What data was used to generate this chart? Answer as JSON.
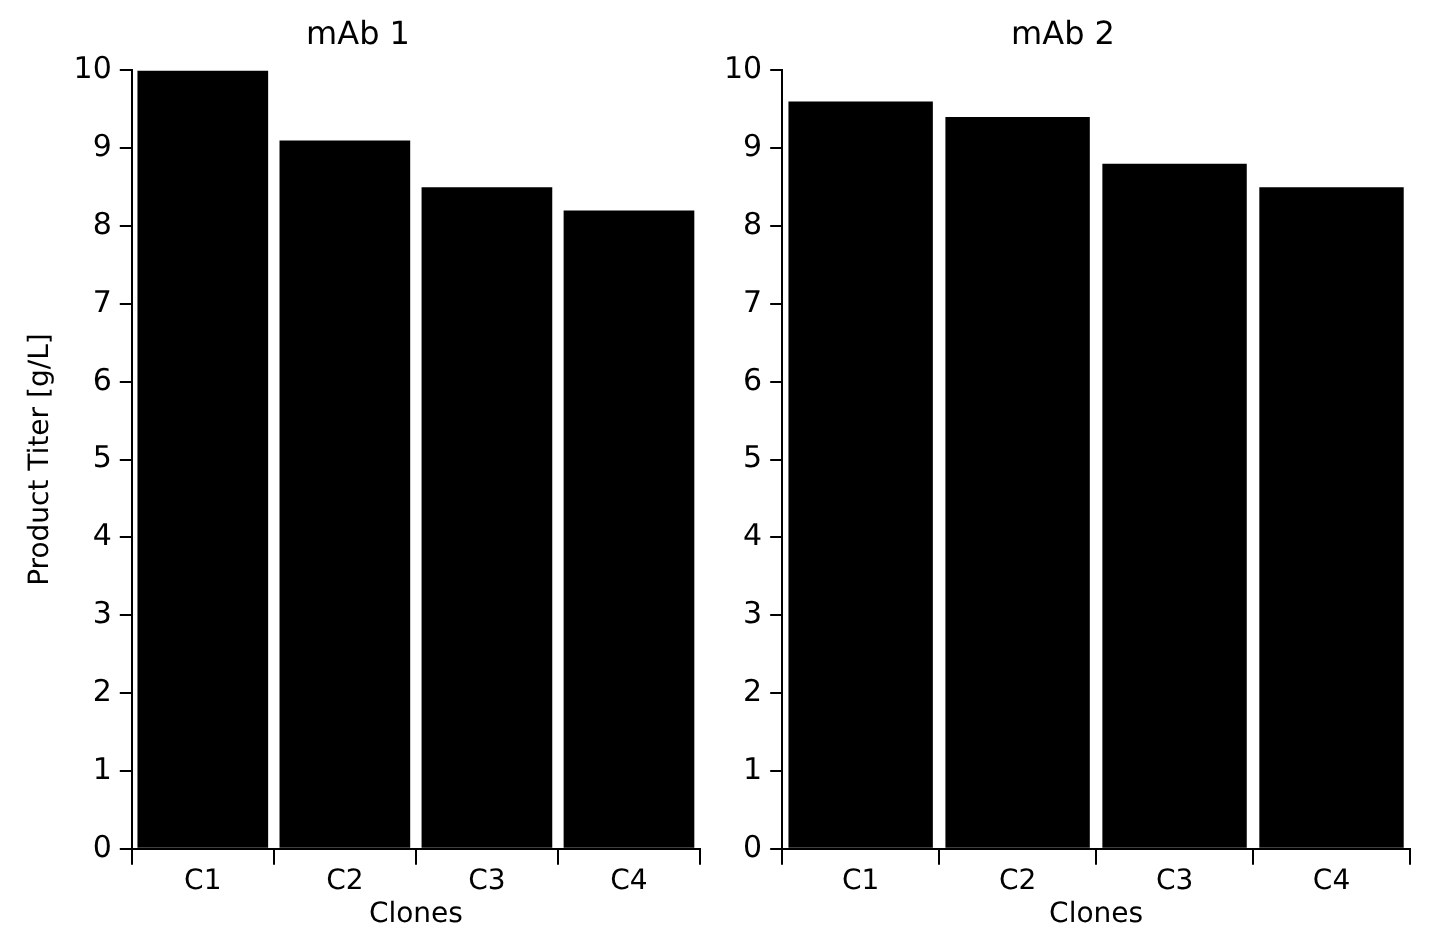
{
  "chart_data": [
    {
      "type": "bar",
      "title": "mAb 1",
      "xlabel": "Clones",
      "ylabel": "Product Titer [g/L]",
      "categories": [
        "C1",
        "C2",
        "C3",
        "C4"
      ],
      "values": [
        10.0,
        9.1,
        8.5,
        8.2
      ],
      "color": "#000000",
      "ylim": [
        0,
        10
      ],
      "yticks": [
        0,
        1,
        2,
        3,
        4,
        5,
        6,
        7,
        8,
        9,
        10
      ]
    },
    {
      "type": "bar",
      "title": "mAb 2",
      "xlabel": "Clones",
      "categories": [
        "C1",
        "C2",
        "C3",
        "C4"
      ],
      "values": [
        9.6,
        9.4,
        8.8,
        8.5
      ],
      "color": "#000000",
      "ylim": [
        0,
        10
      ],
      "yticks": [
        0,
        1,
        2,
        3,
        4,
        5,
        6,
        7,
        8,
        9,
        10
      ]
    }
  ]
}
